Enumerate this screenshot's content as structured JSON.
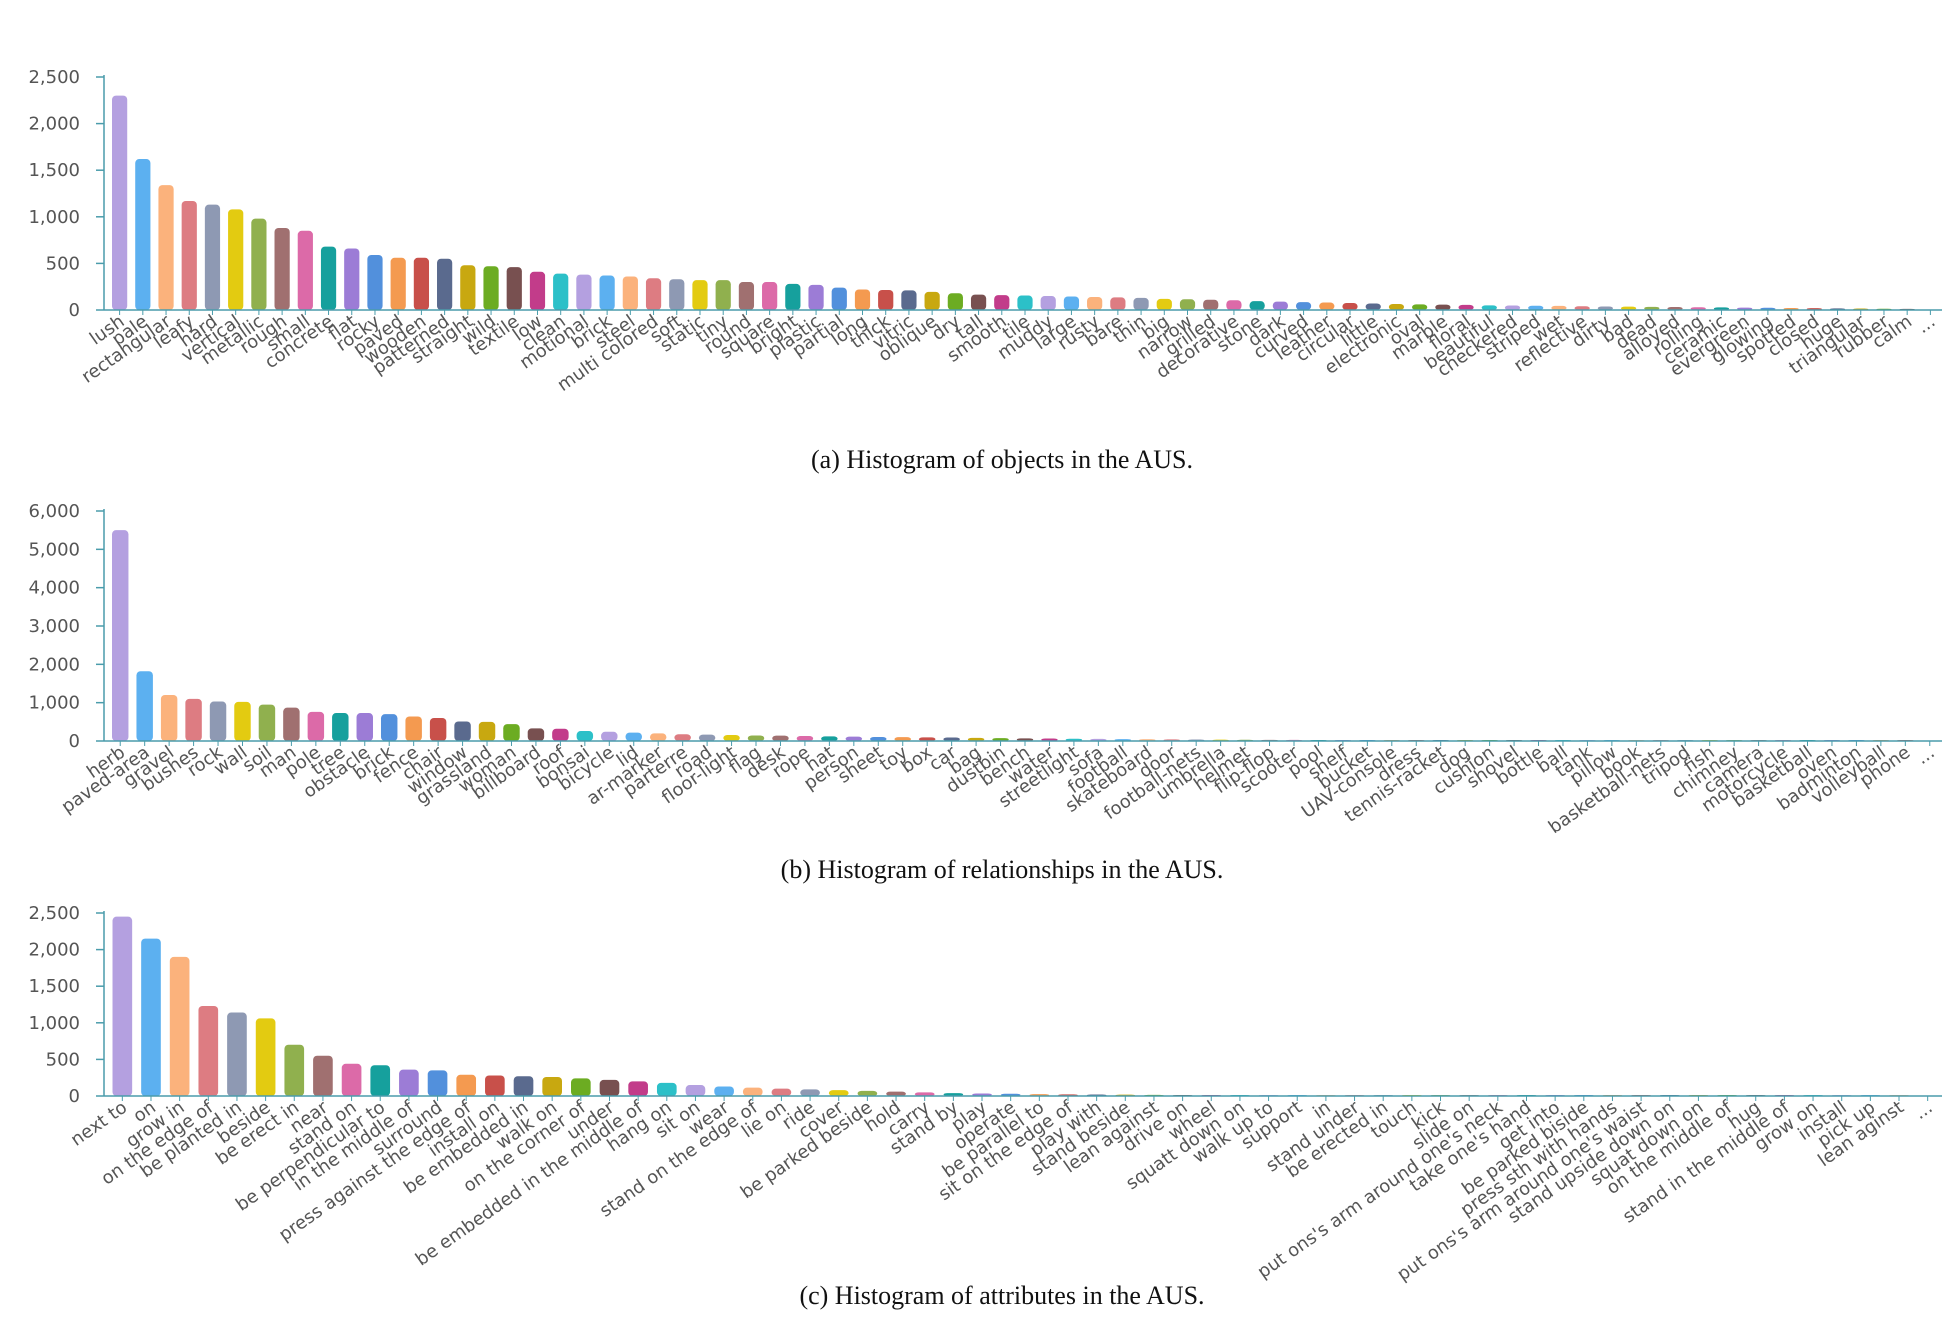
{
  "palette": [
    "#b4a0e0",
    "#5cb0f0",
    "#fbb27c",
    "#dd7c82",
    "#8e99b3",
    "#e3cb11",
    "#90b04e",
    "#a07070",
    "#dc6aa8",
    "#16a09d",
    "#9c7cd6",
    "#5290dc",
    "#f49a50",
    "#c8504a",
    "#5a6a8e",
    "#c8a810",
    "#6cac22",
    "#785050",
    "#c23c8a",
    "#2cc0c8"
  ],
  "chart_data": [
    {
      "type": "bar",
      "caption": "(a) Histogram of objects in the AUS.",
      "ylim": [
        0,
        2500
      ],
      "yticks": [
        "0",
        "500",
        "1,000",
        "1,500",
        "2,000",
        "2,500"
      ],
      "grid": false,
      "categories": [
        "lush",
        "pale",
        "rectangular",
        "leafy",
        "hard",
        "vertical",
        "metallic",
        "rough",
        "small",
        "concrete",
        "flat",
        "rocky",
        "paved",
        "wooden",
        "patterned",
        "straight",
        "wild",
        "textile",
        "low",
        "clean",
        "motional",
        "brick",
        "steel",
        "multi colored",
        "soft",
        "static",
        "tiny",
        "round",
        "square",
        "bright",
        "plastic",
        "partial",
        "long",
        "thick",
        "vitric",
        "oblique",
        "dry",
        "tall",
        "smooth",
        "tile",
        "muddy",
        "large",
        "rusty",
        "bare",
        "thin",
        "big",
        "narrow",
        "grilled",
        "decorative",
        "stone",
        "dark",
        "curved",
        "leather",
        "circular",
        "little",
        "electronic",
        "oval",
        "marble",
        "floral",
        "beautiful",
        "checkered",
        "striped",
        "wet",
        "reflective",
        "dirty",
        "bad",
        "dead",
        "alloyed",
        "rolling",
        "ceramic",
        "evergreen",
        "glowing",
        "spotted",
        "closed",
        "huge",
        "triangular",
        "rubber",
        "calm",
        "..."
      ],
      "values": [
        2300,
        1620,
        1340,
        1170,
        1130,
        1080,
        980,
        880,
        850,
        680,
        660,
        590,
        560,
        560,
        550,
        480,
        470,
        460,
        410,
        390,
        380,
        370,
        360,
        340,
        330,
        320,
        320,
        300,
        300,
        280,
        270,
        240,
        220,
        215,
        210,
        195,
        180,
        165,
        160,
        155,
        150,
        145,
        140,
        135,
        130,
        120,
        115,
        110,
        105,
        95,
        90,
        85,
        80,
        75,
        70,
        65,
        60,
        58,
        55,
        50,
        48,
        46,
        44,
        40,
        38,
        36,
        34,
        32,
        30,
        28,
        26,
        24,
        22,
        20,
        18,
        16,
        14,
        12,
        null
      ]
    },
    {
      "type": "bar",
      "caption": "(b) Histogram of relationships in the AUS.",
      "ylim": [
        0,
        6000
      ],
      "yticks": [
        "0",
        "1,000",
        "2,000",
        "3,000",
        "4,000",
        "5,000",
        "6,000"
      ],
      "grid": false,
      "categories": [
        "herb",
        "paved-area",
        "gravel",
        "bushes",
        "rock",
        "wall",
        "soil",
        "man",
        "pole",
        "tree",
        "obstacle",
        "brick",
        "fence",
        "chair",
        "window",
        "grassland",
        "woman",
        "billboard",
        "roof",
        "bonsai",
        "bicycle",
        "lid",
        "ar-marker",
        "parterre",
        "road",
        "floor-light",
        "flag",
        "desk",
        "rope",
        "hat",
        "person",
        "sheet",
        "toy",
        "box",
        "car",
        "bag",
        "dustbin",
        "bench",
        "water",
        "streetlight",
        "sofa",
        "football",
        "skateboard",
        "door",
        "football-nets",
        "umbrella",
        "helmet",
        "flip-flop",
        "scooter",
        "pool",
        "shelf",
        "bucket",
        "UAV-console",
        "dress",
        "tennis-racket",
        "dog",
        "cushion",
        "shovel",
        "bottle",
        "ball",
        "tank",
        "pillow",
        "book",
        "basketball-nets",
        "tripod",
        "fish",
        "chimney",
        "camera",
        "motorcycle",
        "basketball",
        "oven",
        "badminton",
        "volleyball",
        "phone",
        "..."
      ],
      "values": [
        5500,
        1820,
        1200,
        1100,
        1030,
        1020,
        950,
        870,
        760,
        730,
        730,
        700,
        640,
        600,
        510,
        500,
        440,
        330,
        320,
        260,
        240,
        220,
        200,
        175,
        165,
        155,
        145,
        140,
        130,
        120,
        115,
        105,
        100,
        95,
        90,
        80,
        75,
        70,
        65,
        60,
        55,
        50,
        45,
        42,
        38,
        35,
        32,
        30,
        28,
        25,
        22,
        20,
        18,
        16,
        14,
        12,
        10,
        9,
        8,
        7,
        6,
        5,
        4,
        4,
        3,
        3,
        2,
        2,
        2,
        1,
        1,
        1,
        1,
        1,
        null
      ]
    },
    {
      "type": "bar",
      "caption": "(c) Histogram of attributes in the AUS.",
      "ylim": [
        0,
        2500
      ],
      "yticks": [
        "0",
        "500",
        "1,000",
        "1,500",
        "2,000",
        "2,500"
      ],
      "grid": false,
      "categories": [
        "next to",
        "on",
        "grow in",
        "on the edge of",
        "be planted in",
        "beside",
        "be erect in",
        "near",
        "stand on",
        "be perpendicular to",
        "in the middle of",
        "surround",
        "press against the edge of",
        "install on",
        "be embedded in",
        "walk on",
        "on the corner of",
        "under",
        "be embedded in the middle of",
        "hang on",
        "sit on",
        "wear",
        "stand on the edge of",
        "lie on",
        "ride",
        "cover",
        "be parked beside",
        "hold",
        "carry",
        "stand by",
        "play",
        "operate",
        "be parallel to",
        "sit on the edge of",
        "play with",
        "stand beside",
        "lean against",
        "drive on",
        "wheel",
        "squatt down on",
        "walk up to",
        "support",
        "in",
        "stand under",
        "be erected in",
        "touch",
        "kick",
        "slide on",
        "put ons's arm around one's neck",
        "take one's hand",
        "get into",
        "be parked biside",
        "press sth with hands",
        "put ons's arm around one's waist",
        "stand upside down on",
        "squat down on",
        "on the middle of",
        "hug",
        "stand in the middle of",
        "grow on",
        "install",
        "pick up",
        "lean aginst",
        "..."
      ],
      "values": [
        2450,
        2150,
        1900,
        1230,
        1140,
        1060,
        700,
        550,
        440,
        420,
        360,
        350,
        290,
        280,
        270,
        260,
        240,
        220,
        200,
        180,
        150,
        130,
        115,
        100,
        90,
        80,
        70,
        60,
        50,
        40,
        35,
        30,
        25,
        22,
        20,
        18,
        15,
        12,
        10,
        9,
        8,
        7,
        6,
        5,
        5,
        4,
        4,
        3,
        3,
        3,
        2,
        2,
        2,
        2,
        2,
        1,
        1,
        1,
        1,
        1,
        1,
        1,
        1,
        null
      ]
    }
  ]
}
